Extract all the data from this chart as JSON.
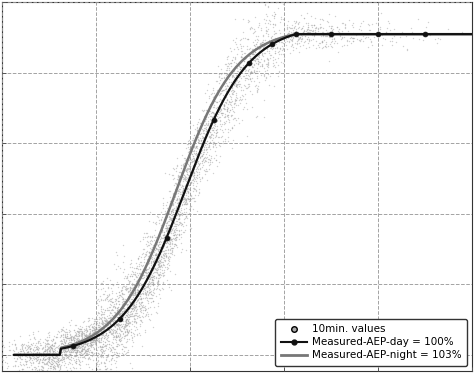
{
  "background_color": "#ffffff",
  "grid_color": "#999999",
  "scatter_color": "#aaaaaa",
  "line_day_color": "#111111",
  "line_night_color": "#777777",
  "legend_labels": [
    "10min. values",
    "Measured-AEP-day = 100%",
    "Measured-AEP-night = 103%"
  ],
  "x_wind_min": 0,
  "x_wind_max": 20,
  "y_power_min": -100,
  "y_power_max": 2200,
  "n_scatter": 5000,
  "seed": 42,
  "weibull_k": 2.0,
  "weibull_scale": 7.5
}
